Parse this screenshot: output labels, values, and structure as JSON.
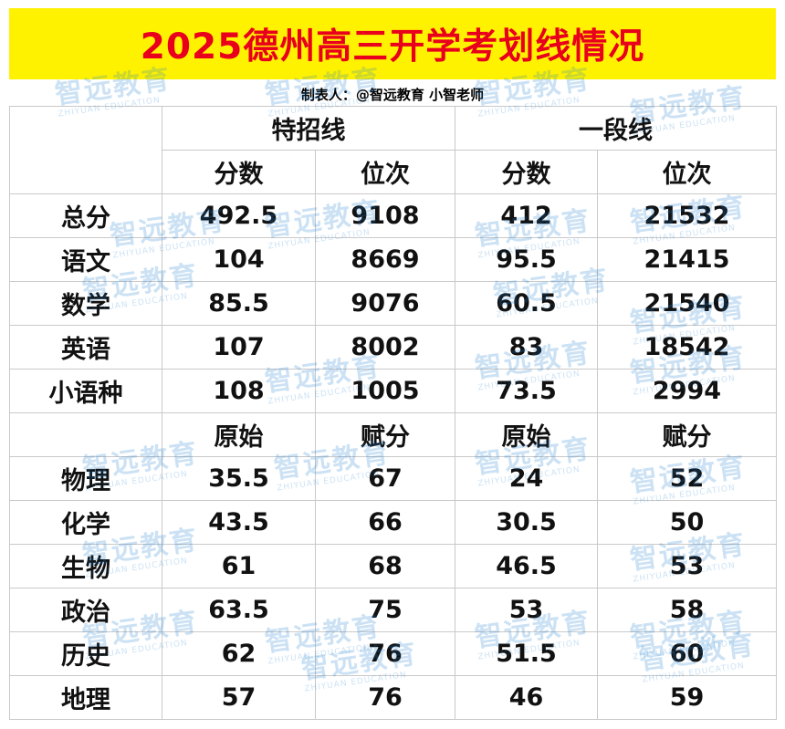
{
  "title": "2025德州高三开学考划线情况",
  "maker": "制表人：@智远教育 小智老师",
  "colors": {
    "title_bg": "#fff200",
    "title_text": "#e8001c",
    "watermark": "#1a7fd0"
  },
  "watermark": {
    "cn": "智远教育",
    "en": "ZHIYUAN EDUCATION"
  },
  "groups": [
    "特招线",
    "一段线"
  ],
  "score_header": [
    "分数",
    "位次",
    "分数",
    "位次"
  ],
  "score_rows": [
    {
      "subject": "总分",
      "values": [
        "492.5",
        "9108",
        "412",
        "21532"
      ]
    },
    {
      "subject": "语文",
      "values": [
        "104",
        "8669",
        "95.5",
        "21415"
      ]
    },
    {
      "subject": "数学",
      "values": [
        "85.5",
        "9076",
        "60.5",
        "21540"
      ]
    },
    {
      "subject": "英语",
      "values": [
        "107",
        "8002",
        "83",
        "18542"
      ]
    },
    {
      "subject": "小语种",
      "values": [
        "108",
        "1005",
        "73.5",
        "2994"
      ]
    }
  ],
  "elective_header": [
    "原始",
    "赋分",
    "原始",
    "赋分"
  ],
  "elective_rows": [
    {
      "subject": "物理",
      "values": [
        "35.5",
        "67",
        "24",
        "52"
      ]
    },
    {
      "subject": "化学",
      "values": [
        "43.5",
        "66",
        "30.5",
        "50"
      ]
    },
    {
      "subject": "生物",
      "values": [
        "61",
        "68",
        "46.5",
        "53"
      ]
    },
    {
      "subject": "政治",
      "values": [
        "63.5",
        "75",
        "53",
        "58"
      ]
    },
    {
      "subject": "历史",
      "values": [
        "62",
        "76",
        "51.5",
        "60"
      ]
    },
    {
      "subject": "地理",
      "values": [
        "57",
        "76",
        "46",
        "59"
      ]
    }
  ]
}
